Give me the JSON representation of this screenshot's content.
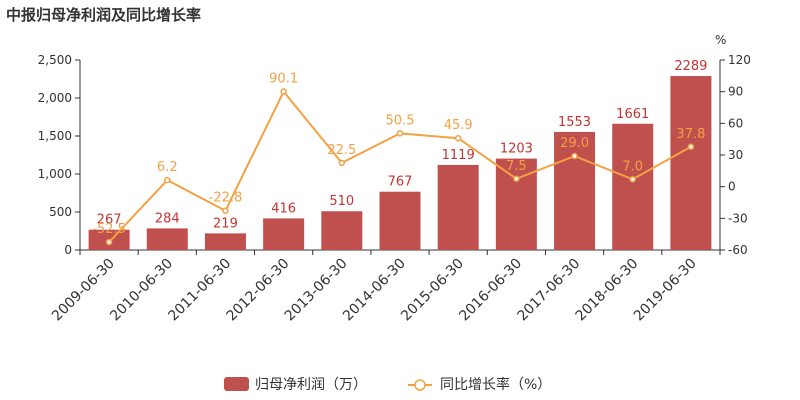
{
  "chart_data": {
    "type": "bar",
    "title": "中报归母净利润及同比增长率",
    "categories": [
      "2009-06-30",
      "2010-06-30",
      "2011-06-30",
      "2012-06-30",
      "2013-06-30",
      "2014-06-30",
      "2015-06-30",
      "2016-06-30",
      "2017-06-30",
      "2018-06-30",
      "2019-06-30"
    ],
    "series": [
      {
        "name": "归母净利润（万）",
        "type": "bar",
        "axis": "left",
        "color": "#c0504d",
        "values": [
          267,
          284,
          219,
          416,
          510,
          767,
          1119,
          1203,
          1553,
          1661,
          2289
        ],
        "labels": [
          "267",
          "284",
          "219",
          "416",
          "510",
          "767",
          "1119",
          "1203",
          "1553",
          "1661",
          "2289"
        ]
      },
      {
        "name": "同比增长率（%）",
        "type": "line",
        "axis": "right",
        "color": "#f4a143",
        "values": [
          -52.5,
          6.2,
          -22.8,
          90.1,
          22.5,
          50.5,
          45.9,
          7.5,
          29.0,
          7.0,
          37.8
        ],
        "labels": [
          "-52.5",
          "6.2",
          "-22.8",
          "90.1",
          "22.5",
          "50.5",
          "45.9",
          "7.5",
          "29.0",
          "7.0",
          "37.8"
        ]
      }
    ],
    "y_left": {
      "ylim": [
        0,
        2500
      ],
      "ticks": [
        0,
        500,
        1000,
        1500,
        2000,
        2500
      ],
      "tick_labels": [
        "0",
        "500",
        "1,000",
        "1,500",
        "2,000",
        "2,500"
      ]
    },
    "y_right": {
      "unit": "%",
      "ylim": [
        -60,
        120
      ],
      "ticks": [
        -60,
        -30,
        0,
        30,
        60,
        90,
        120
      ],
      "tick_labels": [
        "-60",
        "-30",
        "0",
        "30",
        "60",
        "90",
        "120"
      ]
    },
    "grid": false,
    "legend_position": "bottom-center"
  }
}
